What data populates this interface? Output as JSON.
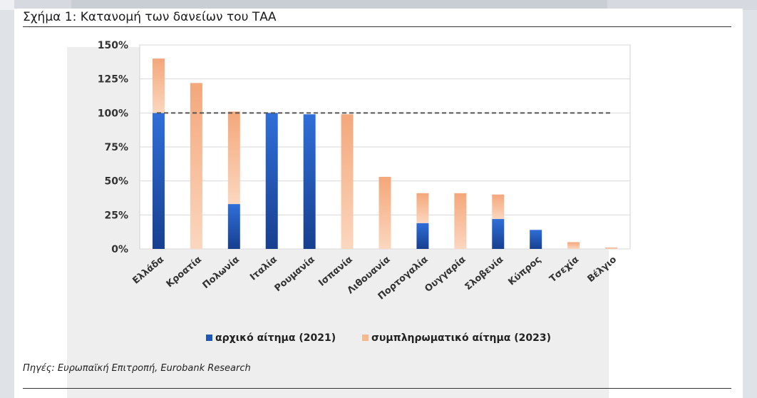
{
  "figure": {
    "title": "Σχήμα 1:  Κατανομή των δανείων του ΤΑΑ",
    "source": "Πηγές: Ευρωπαϊκή Επιτροπή, Eurobank Research"
  },
  "colors": {
    "initial": "#1f57b8",
    "supplementary": "#f6b98f",
    "reference_line": "#555555"
  },
  "chart_data": {
    "type": "bar",
    "stacked": true,
    "categories": [
      "Ελλάδα",
      "Κροατία",
      "Πολωνία",
      "Ιταλία",
      "Ρουμανία",
      "Ισπανία",
      "Λιθουανία",
      "Πορτογαλία",
      "Ουγγαρία",
      "Σλοβενία",
      "Κύπρος",
      "Τσεχία",
      "Βέλγιο"
    ],
    "series": [
      {
        "name": "αρχικό αίτημα (2021)",
        "values": [
          100,
          0,
          33,
          100,
          99,
          0,
          0,
          19,
          0,
          22,
          14,
          0,
          0
        ]
      },
      {
        "name": "συμπληρωματικό αίτημα (2023)",
        "values": [
          40,
          122,
          68,
          0,
          0,
          99,
          53,
          22,
          41,
          18,
          0,
          5,
          1
        ]
      }
    ],
    "reference_line": 100,
    "ylim": [
      0,
      150
    ],
    "yticks": [
      "0%",
      "25%",
      "50%",
      "75%",
      "100%",
      "125%",
      "150%"
    ],
    "ytick_values": [
      0,
      25,
      50,
      75,
      100,
      125,
      150
    ],
    "grid": true,
    "legend_position": "bottom",
    "xlabel": "",
    "ylabel": ""
  }
}
